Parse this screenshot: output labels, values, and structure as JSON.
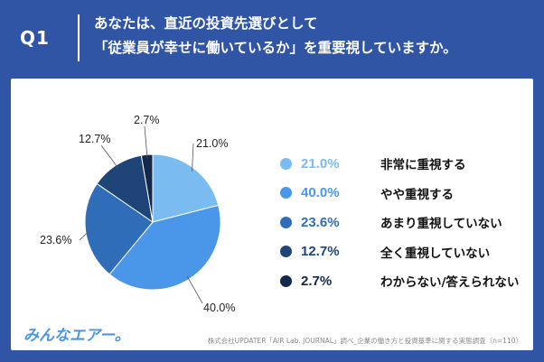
{
  "header": {
    "question_label": "Q1",
    "question_line1": "あなたは、直近の投資先選びとして",
    "question_line2": "「従業員が幸せに働いているか」を重要視していますか。"
  },
  "chart_data": {
    "type": "pie",
    "title": "あなたは、直近の投資先選びとして「従業員が幸せに働いているか」を重要視していますか。",
    "start": "top, clockwise",
    "slices": [
      {
        "label": "非常に重視する",
        "value": 21.0,
        "value_label": "21.0%",
        "color": "#7bbcf0"
      },
      {
        "label": "やや重視する",
        "value": 40.0,
        "value_label": "40.0%",
        "color": "#4a97ea"
      },
      {
        "label": "あまり重視していない",
        "value": 23.6,
        "value_label": "23.6%",
        "color": "#2f6db8"
      },
      {
        "label": "全く重視していない",
        "value": 12.7,
        "value_label": "12.7%",
        "color": "#1e4478"
      },
      {
        "label": "わからない/答えられない",
        "value": 2.7,
        "value_label": "2.7%",
        "color": "#14284b"
      }
    ]
  },
  "footer": {
    "logo_text": "みんなエアー。",
    "source_text": "株式会社UPDATER「AIR Lab. JOURNAL」調べ_企業の働き方と投資基準に関する実態調査（n=110）"
  }
}
